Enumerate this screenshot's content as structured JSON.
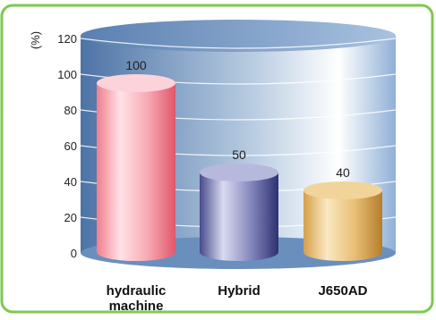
{
  "chart_data": {
    "type": "bar",
    "categories": [
      "hydraulic machine",
      "Hybrid",
      "J650AD"
    ],
    "category_label_lines": [
      [
        "hydraulic",
        "machine"
      ],
      [
        "Hybrid"
      ],
      [
        "J650AD"
      ]
    ],
    "values": [
      100,
      50,
      40
    ],
    "value_labels": [
      "100",
      "50",
      "40"
    ],
    "ylabel": "(%)",
    "ylim": [
      0,
      120
    ],
    "yticks": [
      "0",
      "20",
      "40",
      "60",
      "80",
      "100",
      "120"
    ],
    "grid": true,
    "legend": "none"
  },
  "colors": {
    "frame_border": "#7ec850",
    "bar_pink": "#f07e8c",
    "bar_navy": "#474a8c",
    "bar_gold": "#d4a04a",
    "backdrop": "#6b8fbd"
  }
}
